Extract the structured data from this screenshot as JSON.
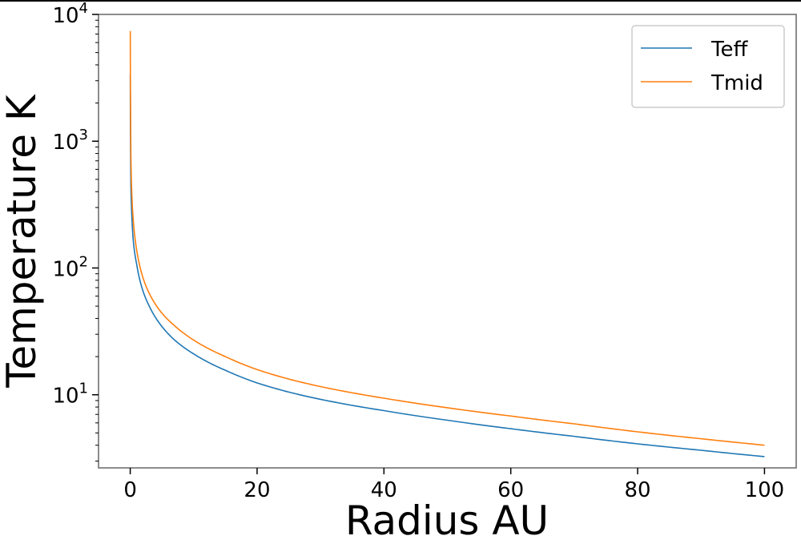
{
  "chart_data": {
    "type": "line",
    "title": "",
    "xlabel": "Radius AU",
    "ylabel": "Temperature K",
    "xlim": [
      -5,
      105
    ],
    "ylim": [
      2.65,
      10000
    ],
    "yscale": "log",
    "grid": false,
    "legend_position": "top-right",
    "x_ticks": [
      {
        "value": 0,
        "label": "0"
      },
      {
        "value": 20,
        "label": "20"
      },
      {
        "value": 40,
        "label": "40"
      },
      {
        "value": 60,
        "label": "60"
      },
      {
        "value": 80,
        "label": "80"
      },
      {
        "value": 100,
        "label": "100"
      }
    ],
    "y_ticks": [
      {
        "value": 10,
        "base": "10",
        "exp": "1"
      },
      {
        "value": 100,
        "base": "10",
        "exp": "2"
      },
      {
        "value": 1000,
        "base": "10",
        "exp": "3"
      },
      {
        "value": 10000,
        "base": "10",
        "exp": "4"
      }
    ],
    "series": [
      {
        "name": "Teff",
        "color": "#1f77b4",
        "points": [
          [
            0.01,
            3400
          ],
          [
            0.05,
            900
          ],
          [
            0.1,
            450
          ],
          [
            0.2,
            300
          ],
          [
            0.5,
            160
          ],
          [
            1,
            108
          ],
          [
            2,
            66
          ],
          [
            3,
            50
          ],
          [
            5,
            34.5
          ],
          [
            7,
            27
          ],
          [
            10,
            21
          ],
          [
            15,
            15.6
          ],
          [
            20,
            12.4
          ],
          [
            25,
            10.5
          ],
          [
            30,
            9.2
          ],
          [
            40,
            7.5
          ],
          [
            50,
            6.3
          ],
          [
            60,
            5.4
          ],
          [
            70,
            4.7
          ],
          [
            80,
            4.1
          ],
          [
            90,
            3.65
          ],
          [
            100,
            3.25
          ]
        ]
      },
      {
        "name": "Tmid",
        "color": "#ff7f0e",
        "points": [
          [
            0.01,
            7400
          ],
          [
            0.05,
            2100
          ],
          [
            0.1,
            800
          ],
          [
            0.2,
            450
          ],
          [
            0.5,
            230
          ],
          [
            1,
            140
          ],
          [
            2,
            84
          ],
          [
            3,
            63
          ],
          [
            5,
            44
          ],
          [
            7,
            35
          ],
          [
            10,
            27
          ],
          [
            15,
            20
          ],
          [
            20,
            15.8
          ],
          [
            25,
            13.3
          ],
          [
            30,
            11.6
          ],
          [
            40,
            9.4
          ],
          [
            50,
            7.9
          ],
          [
            60,
            6.8
          ],
          [
            70,
            5.9
          ],
          [
            80,
            5.1
          ],
          [
            90,
            4.5
          ],
          [
            100,
            4.0
          ]
        ]
      }
    ]
  }
}
